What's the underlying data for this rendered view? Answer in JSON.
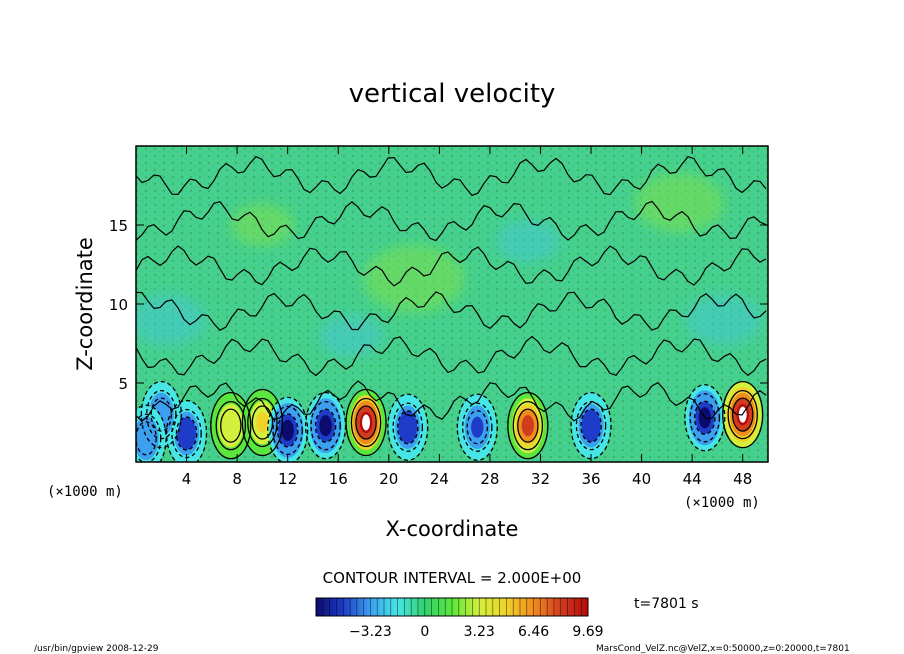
{
  "chart_data": {
    "type": "heatmap",
    "title": "vertical velocity",
    "xlabel": "X-coordinate",
    "ylabel": "Z-coordinate",
    "x_units": "(×1000 m)",
    "y_units": "(×1000 m)",
    "xlim": [
      0,
      50
    ],
    "ylim": [
      0,
      20
    ],
    "x_ticks": [
      "4",
      "8",
      "12",
      "16",
      "20",
      "24",
      "28",
      "32",
      "36",
      "40",
      "44",
      "48"
    ],
    "y_ticks": [
      "5",
      "10",
      "15"
    ],
    "contour_interval_label": "CONTOUR INTERVAL = 2.000E+00",
    "colorbar": {
      "range": [
        -6.46,
        9.69
      ],
      "tick_labels": [
        "−3.23",
        "0",
        "3.23",
        "6.46",
        "9.69"
      ],
      "colors": [
        "#0b0b6e",
        "#1e3cc8",
        "#3ca0f0",
        "#46e6e6",
        "#32d26e",
        "#5ae63c",
        "#d2f03c",
        "#f0d228",
        "#f08c1e",
        "#d23c1e",
        "#b40a0a"
      ]
    },
    "field_features": [
      {
        "kind": "updraft",
        "x": 18.2,
        "z": 2.5,
        "value": 9.6
      },
      {
        "kind": "updraft",
        "x": 31.0,
        "z": 2.3,
        "value": 8.5
      },
      {
        "kind": "updraft",
        "x": 48.0,
        "z": 3.0,
        "value": 9.7
      },
      {
        "kind": "updraft",
        "x": 7.5,
        "z": 2.3,
        "value": 4.0
      },
      {
        "kind": "updraft",
        "x": 10.0,
        "z": 2.5,
        "value": 4.5
      },
      {
        "kind": "downdraft",
        "x": 4.0,
        "z": 1.8,
        "value": -5.5
      },
      {
        "kind": "downdraft",
        "x": 12.0,
        "z": 2.0,
        "value": -6.0
      },
      {
        "kind": "downdraft",
        "x": 15.0,
        "z": 2.3,
        "value": -6.0
      },
      {
        "kind": "downdraft",
        "x": 21.5,
        "z": 2.2,
        "value": -5.0
      },
      {
        "kind": "downdraft",
        "x": 27.0,
        "z": 2.2,
        "value": -4.5
      },
      {
        "kind": "downdraft",
        "x": 36.0,
        "z": 2.3,
        "value": -5.5
      },
      {
        "kind": "downdraft",
        "x": 45.0,
        "z": 2.8,
        "value": -6.2
      },
      {
        "kind": "downdraft",
        "x": 2.0,
        "z": 3.0,
        "value": -4.0
      },
      {
        "kind": "downdraft",
        "x": 0.8,
        "z": 1.5,
        "value": -4.0
      }
    ]
  },
  "time_label": "t=7801 s",
  "footer_left": "/usr/bin/gpview   2008-12-29",
  "footer_right": "MarsCond_VelZ.nc@VelZ,x=0:50000,z=0:20000,t=7801"
}
